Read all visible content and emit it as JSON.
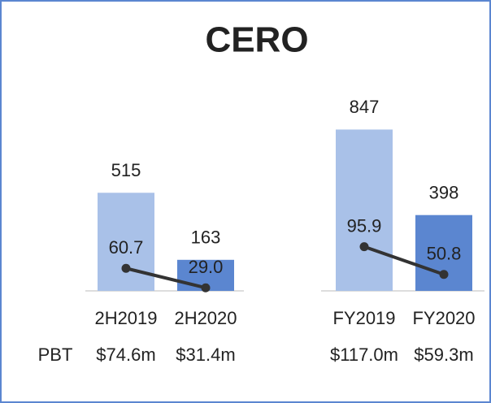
{
  "chart_data": {
    "type": "bar",
    "title": "CERO",
    "ylim": [
      0,
      900
    ],
    "y2lim": [
      24,
      303
    ],
    "colors": [
      "#a9c1e8",
      "#5b86d0"
    ],
    "row_label": "PBT",
    "groups": [
      {
        "categories": [
          "2H2019",
          "2H2020"
        ],
        "values": [
          515,
          163
        ],
        "line": {
          "color": "#333333",
          "axis": "y2",
          "values": [
            60.7,
            29.0
          ],
          "value_labels": [
            "60.7",
            "29.0"
          ]
        },
        "row_values": [
          "$74.6m",
          "$31.4m"
        ]
      },
      {
        "categories": [
          "FY2019",
          "FY2020"
        ],
        "values": [
          847,
          398
        ],
        "line": {
          "color": "#333333",
          "axis": "y2",
          "values": [
            95.9,
            50.8
          ],
          "value_labels": [
            "95.9",
            "50.8"
          ]
        },
        "row_values": [
          "$117.0m",
          "$59.3m"
        ]
      }
    ]
  }
}
